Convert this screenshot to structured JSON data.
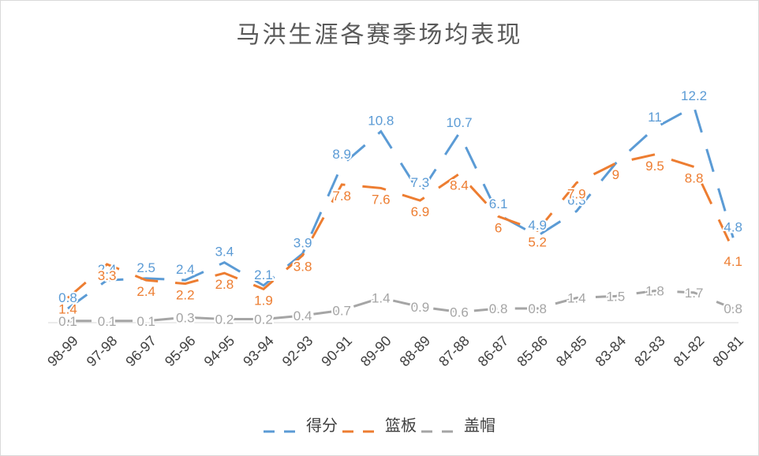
{
  "chart_data": {
    "type": "line",
    "title": "马洪生涯各赛季场均表现",
    "categories": [
      "98-99",
      "97-98",
      "96-97",
      "95-96",
      "94-95",
      "93-94",
      "92-93",
      "90-91",
      "89-90",
      "88-89",
      "87-88",
      "86-87",
      "85-86",
      "84-85",
      "83-84",
      "82-83",
      "81-82",
      "80-81"
    ],
    "series": [
      {
        "name": "得分",
        "color": "#5b9bd5",
        "values": [
          0.8,
          2.4,
          2.5,
          2.4,
          3.4,
          2.1,
          3.9,
          8.9,
          10.8,
          7.3,
          10.7,
          6.1,
          4.9,
          6.3,
          9.0,
          11,
          12.2,
          4.8
        ]
      },
      {
        "name": "篮板",
        "color": "#ed7d31",
        "values": [
          1.4,
          3.3,
          2.4,
          2.2,
          2.8,
          1.9,
          3.8,
          7.8,
          7.6,
          6.9,
          8.4,
          6,
          5.2,
          7.9,
          9,
          9.5,
          8.8,
          4.1
        ]
      },
      {
        "name": "盖帽",
        "color": "#a5a5a5",
        "values": [
          0.1,
          0.1,
          0.1,
          0.3,
          0.2,
          0.2,
          0.4,
          0.7,
          1.4,
          0.9,
          0.6,
          0.8,
          0.8,
          1.4,
          1.5,
          1.8,
          1.7,
          0.8
        ]
      }
    ],
    "data_labels": {
      "得分": [
        "0.8",
        "2.4",
        "2.5",
        "2.4",
        "3.4",
        "2.1",
        "3.9",
        "8.9",
        "10.8",
        "7.3",
        "10.7",
        "6.1",
        "4.9",
        "6.3",
        "",
        "11",
        "12.2",
        "4.8"
      ],
      "篮板": [
        "1.4",
        "3.3",
        "2.4",
        "2.2",
        "2.8",
        "1.9",
        "3.8",
        "7.8",
        "7.6",
        "6.9",
        "8.4",
        "6",
        "5.2",
        "7.9",
        "9",
        "9.5",
        "8.8",
        "4.1"
      ],
      "盖帽": [
        "0.1",
        "0.1",
        "0.1",
        "0.3",
        "0.2",
        "0.2",
        "0.4",
        "0.7",
        "1.4",
        "0.9",
        "0.6",
        "0.8",
        "0.8",
        "1.4",
        "1.5",
        "1.8",
        "1.7",
        "0.8"
      ]
    },
    "ylim": [
      0,
      14
    ],
    "grid": false,
    "line_style": "dashed",
    "legend_position": "bottom"
  }
}
